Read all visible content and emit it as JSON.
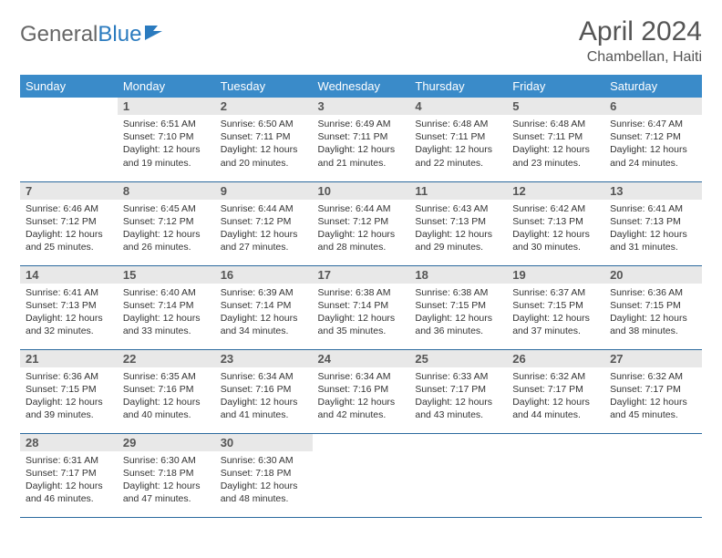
{
  "logo": {
    "text1": "General",
    "text2": "Blue"
  },
  "title": "April 2024",
  "location": "Chambellan, Haiti",
  "colors": {
    "header_bg": "#3a8bc9",
    "header_text": "#ffffff",
    "daynum_bg": "#e8e8e8",
    "border": "#2b6a9e",
    "logo_gray": "#666666",
    "logo_blue": "#2b7bbf"
  },
  "weekdays": [
    "Sunday",
    "Monday",
    "Tuesday",
    "Wednesday",
    "Thursday",
    "Friday",
    "Saturday"
  ],
  "weeks": [
    [
      null,
      {
        "n": "1",
        "sr": "Sunrise: 6:51 AM",
        "ss": "Sunset: 7:10 PM",
        "d1": "Daylight: 12 hours",
        "d2": "and 19 minutes."
      },
      {
        "n": "2",
        "sr": "Sunrise: 6:50 AM",
        "ss": "Sunset: 7:11 PM",
        "d1": "Daylight: 12 hours",
        "d2": "and 20 minutes."
      },
      {
        "n": "3",
        "sr": "Sunrise: 6:49 AM",
        "ss": "Sunset: 7:11 PM",
        "d1": "Daylight: 12 hours",
        "d2": "and 21 minutes."
      },
      {
        "n": "4",
        "sr": "Sunrise: 6:48 AM",
        "ss": "Sunset: 7:11 PM",
        "d1": "Daylight: 12 hours",
        "d2": "and 22 minutes."
      },
      {
        "n": "5",
        "sr": "Sunrise: 6:48 AM",
        "ss": "Sunset: 7:11 PM",
        "d1": "Daylight: 12 hours",
        "d2": "and 23 minutes."
      },
      {
        "n": "6",
        "sr": "Sunrise: 6:47 AM",
        "ss": "Sunset: 7:12 PM",
        "d1": "Daylight: 12 hours",
        "d2": "and 24 minutes."
      }
    ],
    [
      {
        "n": "7",
        "sr": "Sunrise: 6:46 AM",
        "ss": "Sunset: 7:12 PM",
        "d1": "Daylight: 12 hours",
        "d2": "and 25 minutes."
      },
      {
        "n": "8",
        "sr": "Sunrise: 6:45 AM",
        "ss": "Sunset: 7:12 PM",
        "d1": "Daylight: 12 hours",
        "d2": "and 26 minutes."
      },
      {
        "n": "9",
        "sr": "Sunrise: 6:44 AM",
        "ss": "Sunset: 7:12 PM",
        "d1": "Daylight: 12 hours",
        "d2": "and 27 minutes."
      },
      {
        "n": "10",
        "sr": "Sunrise: 6:44 AM",
        "ss": "Sunset: 7:12 PM",
        "d1": "Daylight: 12 hours",
        "d2": "and 28 minutes."
      },
      {
        "n": "11",
        "sr": "Sunrise: 6:43 AM",
        "ss": "Sunset: 7:13 PM",
        "d1": "Daylight: 12 hours",
        "d2": "and 29 minutes."
      },
      {
        "n": "12",
        "sr": "Sunrise: 6:42 AM",
        "ss": "Sunset: 7:13 PM",
        "d1": "Daylight: 12 hours",
        "d2": "and 30 minutes."
      },
      {
        "n": "13",
        "sr": "Sunrise: 6:41 AM",
        "ss": "Sunset: 7:13 PM",
        "d1": "Daylight: 12 hours",
        "d2": "and 31 minutes."
      }
    ],
    [
      {
        "n": "14",
        "sr": "Sunrise: 6:41 AM",
        "ss": "Sunset: 7:13 PM",
        "d1": "Daylight: 12 hours",
        "d2": "and 32 minutes."
      },
      {
        "n": "15",
        "sr": "Sunrise: 6:40 AM",
        "ss": "Sunset: 7:14 PM",
        "d1": "Daylight: 12 hours",
        "d2": "and 33 minutes."
      },
      {
        "n": "16",
        "sr": "Sunrise: 6:39 AM",
        "ss": "Sunset: 7:14 PM",
        "d1": "Daylight: 12 hours",
        "d2": "and 34 minutes."
      },
      {
        "n": "17",
        "sr": "Sunrise: 6:38 AM",
        "ss": "Sunset: 7:14 PM",
        "d1": "Daylight: 12 hours",
        "d2": "and 35 minutes."
      },
      {
        "n": "18",
        "sr": "Sunrise: 6:38 AM",
        "ss": "Sunset: 7:15 PM",
        "d1": "Daylight: 12 hours",
        "d2": "and 36 minutes."
      },
      {
        "n": "19",
        "sr": "Sunrise: 6:37 AM",
        "ss": "Sunset: 7:15 PM",
        "d1": "Daylight: 12 hours",
        "d2": "and 37 minutes."
      },
      {
        "n": "20",
        "sr": "Sunrise: 6:36 AM",
        "ss": "Sunset: 7:15 PM",
        "d1": "Daylight: 12 hours",
        "d2": "and 38 minutes."
      }
    ],
    [
      {
        "n": "21",
        "sr": "Sunrise: 6:36 AM",
        "ss": "Sunset: 7:15 PM",
        "d1": "Daylight: 12 hours",
        "d2": "and 39 minutes."
      },
      {
        "n": "22",
        "sr": "Sunrise: 6:35 AM",
        "ss": "Sunset: 7:16 PM",
        "d1": "Daylight: 12 hours",
        "d2": "and 40 minutes."
      },
      {
        "n": "23",
        "sr": "Sunrise: 6:34 AM",
        "ss": "Sunset: 7:16 PM",
        "d1": "Daylight: 12 hours",
        "d2": "and 41 minutes."
      },
      {
        "n": "24",
        "sr": "Sunrise: 6:34 AM",
        "ss": "Sunset: 7:16 PM",
        "d1": "Daylight: 12 hours",
        "d2": "and 42 minutes."
      },
      {
        "n": "25",
        "sr": "Sunrise: 6:33 AM",
        "ss": "Sunset: 7:17 PM",
        "d1": "Daylight: 12 hours",
        "d2": "and 43 minutes."
      },
      {
        "n": "26",
        "sr": "Sunrise: 6:32 AM",
        "ss": "Sunset: 7:17 PM",
        "d1": "Daylight: 12 hours",
        "d2": "and 44 minutes."
      },
      {
        "n": "27",
        "sr": "Sunrise: 6:32 AM",
        "ss": "Sunset: 7:17 PM",
        "d1": "Daylight: 12 hours",
        "d2": "and 45 minutes."
      }
    ],
    [
      {
        "n": "28",
        "sr": "Sunrise: 6:31 AM",
        "ss": "Sunset: 7:17 PM",
        "d1": "Daylight: 12 hours",
        "d2": "and 46 minutes."
      },
      {
        "n": "29",
        "sr": "Sunrise: 6:30 AM",
        "ss": "Sunset: 7:18 PM",
        "d1": "Daylight: 12 hours",
        "d2": "and 47 minutes."
      },
      {
        "n": "30",
        "sr": "Sunrise: 6:30 AM",
        "ss": "Sunset: 7:18 PM",
        "d1": "Daylight: 12 hours",
        "d2": "and 48 minutes."
      },
      null,
      null,
      null,
      null
    ]
  ]
}
